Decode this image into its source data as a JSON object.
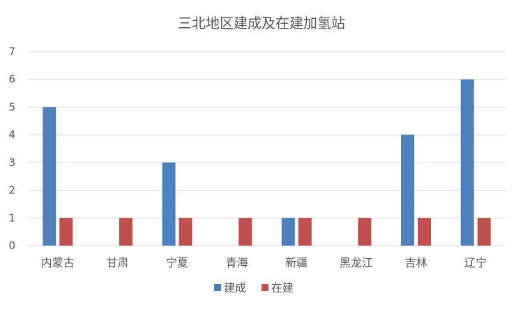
{
  "chart_data": {
    "type": "bar",
    "title": "三北地区建成及在建加氢站",
    "xlabel": "",
    "ylabel": "",
    "categories": [
      "内蒙古",
      "甘肃",
      "宁夏",
      "青海",
      "新疆",
      "黑龙江",
      "吉林",
      "辽宁"
    ],
    "series": [
      {
        "name": "建成",
        "values": [
          5,
          0,
          3,
          0,
          1,
          0,
          4,
          6
        ],
        "color": "#4f81bd"
      },
      {
        "name": "在建",
        "values": [
          1,
          1,
          1,
          1,
          1,
          1,
          1,
          1
        ],
        "color": "#c0504d"
      }
    ],
    "ylim": [
      0,
      7
    ],
    "yticks": [
      "0",
      "1",
      "2",
      "3",
      "4",
      "5",
      "6",
      "7"
    ],
    "grid": true,
    "legend_position": "bottom"
  }
}
